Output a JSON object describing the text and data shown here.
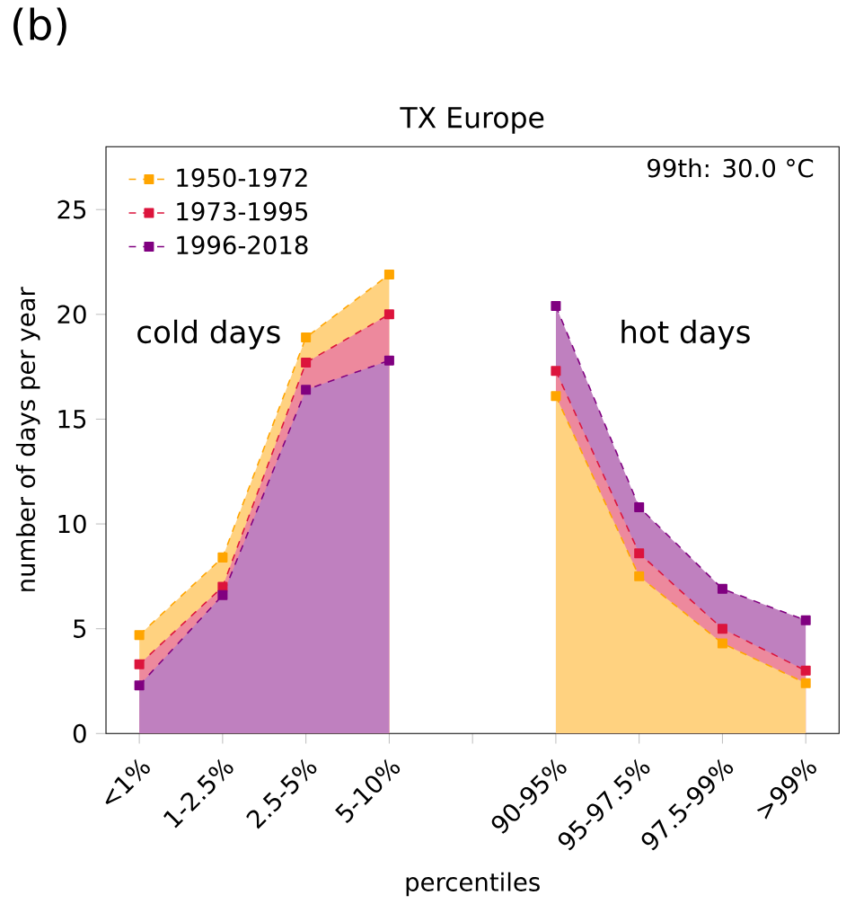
{
  "chart_data": {
    "type": "area",
    "title": "TX Europe",
    "xlabel": "percentiles",
    "ylabel": "number of days per year",
    "categories": [
      "<1%",
      "1-2.5%",
      "2.5-5%",
      "5-10%",
      null,
      "90-95%",
      "95-97.5%",
      "97.5-99%",
      ">99%"
    ],
    "series": [
      {
        "name": "1950-1972",
        "color": "#ffa500",
        "values": [
          4.7,
          8.4,
          18.9,
          21.9,
          null,
          16.1,
          7.5,
          4.3,
          2.4
        ]
      },
      {
        "name": "1973-1995",
        "color": "#dc143c",
        "values": [
          3.3,
          7.0,
          17.7,
          20.0,
          null,
          17.3,
          8.6,
          5.0,
          3.0
        ]
      },
      {
        "name": "1996-2018",
        "color": "#800080",
        "values": [
          2.3,
          6.6,
          16.4,
          17.8,
          null,
          20.4,
          10.8,
          6.9,
          5.4
        ]
      }
    ],
    "ylim": [
      0,
      28
    ],
    "yticks": [
      0,
      5,
      10,
      15,
      20,
      25
    ],
    "legend": "top left",
    "marker": "square",
    "line_style": "dashed",
    "annotations": [
      "(b)",
      "99th: 30.0 °C",
      "cold days",
      "hot days"
    ]
  }
}
